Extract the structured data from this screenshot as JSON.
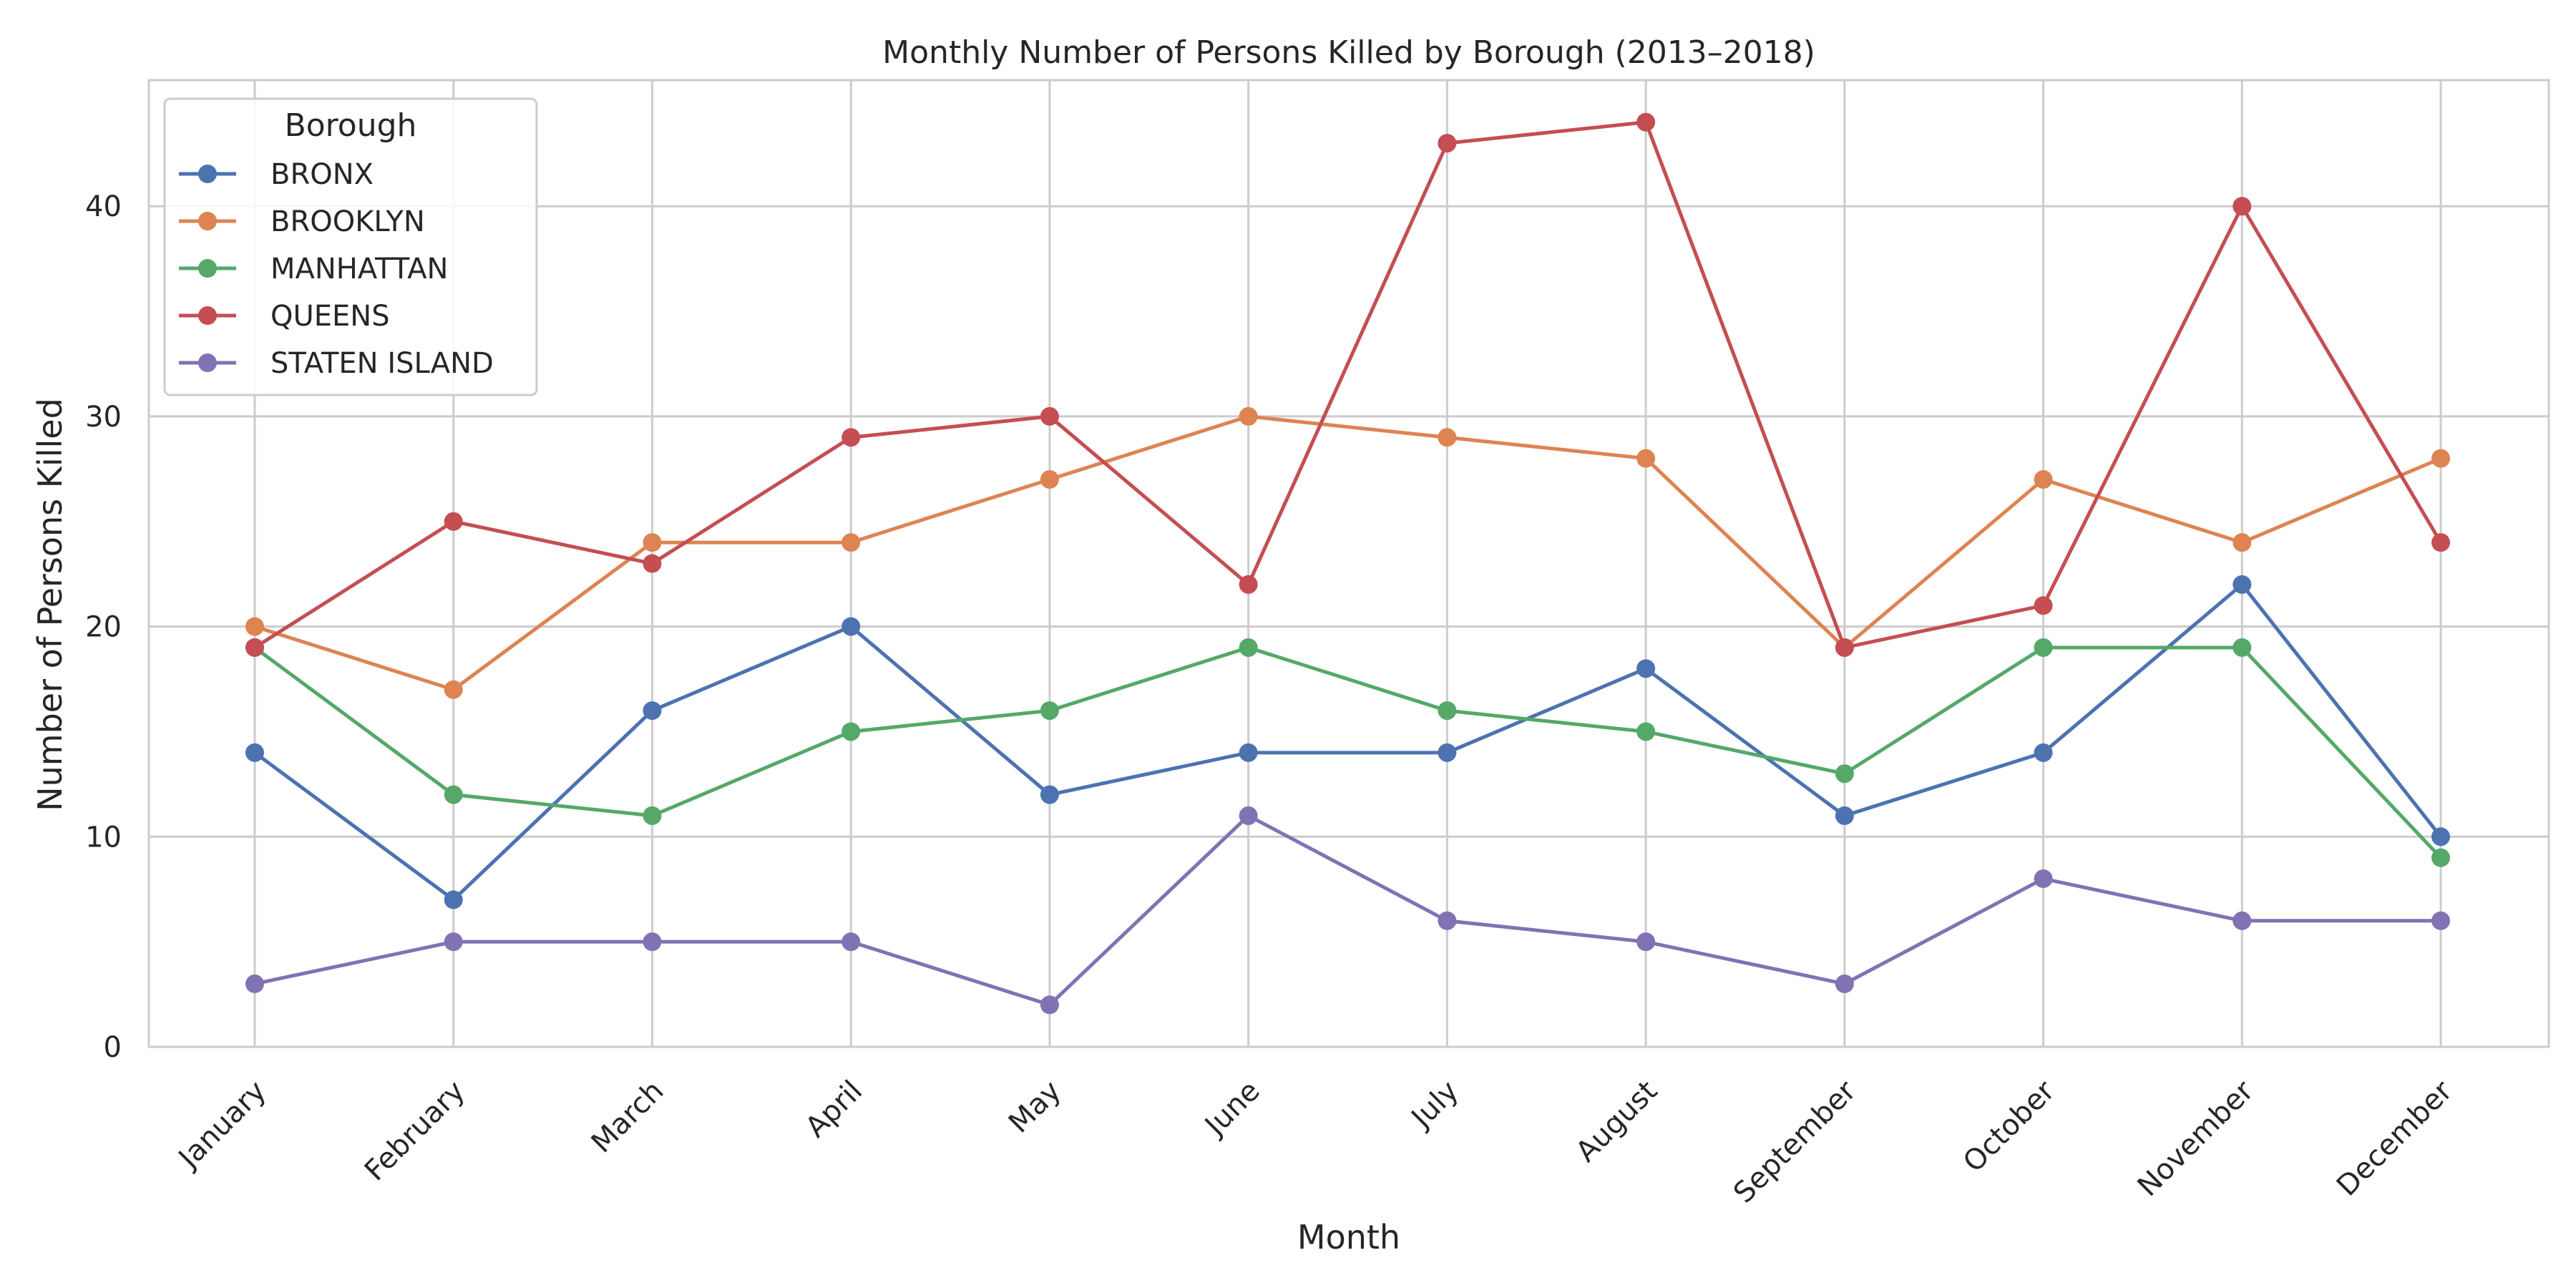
{
  "chart_data": {
    "type": "line",
    "title": "Monthly Number of Persons Killed by Borough (2013–2018)",
    "xlabel": "Month",
    "ylabel": "Number of Persons Killed",
    "categories": [
      "January",
      "February",
      "March",
      "April",
      "May",
      "June",
      "July",
      "August",
      "September",
      "October",
      "November",
      "December"
    ],
    "ylim": [
      0,
      46
    ],
    "yticks": [
      0,
      10,
      20,
      30,
      40
    ],
    "grid": true,
    "legend": {
      "title": "Borough",
      "placement": "top-left"
    },
    "series": [
      {
        "name": "BRONX",
        "color": "#4c72b0",
        "values": [
          14,
          7,
          16,
          20,
          12,
          14,
          14,
          18,
          11,
          14,
          22,
          10
        ]
      },
      {
        "name": "BROOKLYN",
        "color": "#dd8452",
        "values": [
          20,
          17,
          24,
          24,
          27,
          30,
          29,
          28,
          19,
          27,
          24,
          28
        ]
      },
      {
        "name": "MANHATTAN",
        "color": "#55a868",
        "values": [
          19,
          12,
          11,
          15,
          16,
          19,
          16,
          15,
          13,
          19,
          19,
          9
        ]
      },
      {
        "name": "QUEENS",
        "color": "#c44e52",
        "values": [
          19,
          25,
          23,
          29,
          30,
          22,
          43,
          44,
          19,
          21,
          40,
          24
        ]
      },
      {
        "name": "STATEN ISLAND",
        "color": "#8172b3",
        "values": [
          3,
          5,
          5,
          5,
          2,
          11,
          6,
          5,
          3,
          8,
          6,
          6
        ]
      }
    ]
  }
}
